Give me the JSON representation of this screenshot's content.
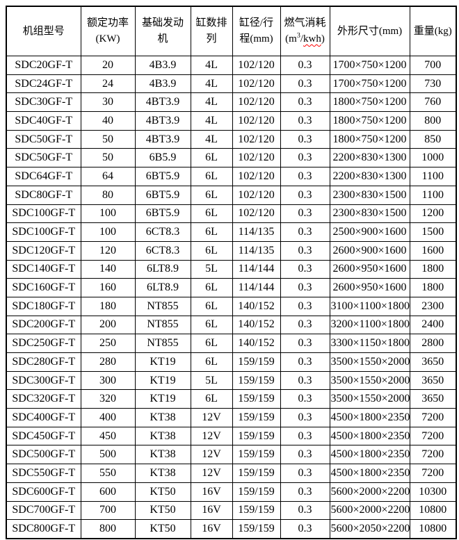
{
  "colors": {
    "border": "#000000",
    "text": "#000000",
    "background": "#ffffff",
    "spellcheck_underline": "#ff0000"
  },
  "table": {
    "columns": [
      {
        "line1": "机组型号"
      },
      {
        "line1": "额定功率",
        "line2": "(KW)"
      },
      {
        "line1": "基础发动",
        "line2": "机"
      },
      {
        "line1": "缸数排",
        "line2": "列"
      },
      {
        "line1": "缸径/行",
        "line2": "程(mm)"
      },
      {
        "line1": "燃气消耗",
        "unit_pre": "(m",
        "unit_sup": "3",
        "unit_slash": "/",
        "unit_kwh": "kwh",
        "unit_post": ")"
      },
      {
        "line1": "外形尺寸(mm)"
      },
      {
        "line1": "重量(kg)"
      }
    ],
    "rows": [
      [
        "SDC20GF-T",
        "20",
        "4B3.9",
        "4L",
        "102/120",
        "0.3",
        "1700×750×1200",
        "700"
      ],
      [
        "SDC24GF-T",
        "24",
        "4B3.9",
        "4L",
        "102/120",
        "0.3",
        "1700×750×1200",
        "730"
      ],
      [
        "SDC30GF-T",
        "30",
        "4BT3.9",
        "4L",
        "102/120",
        "0.3",
        "1800×750×1200",
        "760"
      ],
      [
        "SDC40GF-T",
        "40",
        "4BT3.9",
        "4L",
        "102/120",
        "0.3",
        "1800×750×1200",
        "800"
      ],
      [
        "SDC50GF-T",
        "50",
        "4BT3.9",
        "4L",
        "102/120",
        "0.3",
        "1800×750×1200",
        "850"
      ],
      [
        "SDC50GF-T",
        "50",
        "6B5.9",
        "6L",
        "102/120",
        "0.3",
        "2200×830×1300",
        "1000"
      ],
      [
        "SDC64GF-T",
        "64",
        "6BT5.9",
        "6L",
        "102/120",
        "0.3",
        "2200×830×1300",
        "1100"
      ],
      [
        "SDC80GF-T",
        "80",
        "6BT5.9",
        "6L",
        "102/120",
        "0.3",
        "2300×830×1500",
        "1100"
      ],
      [
        "SDC100GF-T",
        "100",
        "6BT5.9",
        "6L",
        "102/120",
        "0.3",
        "2300×830×1500",
        "1200"
      ],
      [
        "SDC100GF-T",
        "100",
        "6CT8.3",
        "6L",
        "114/135",
        "0.3",
        "2500×900×1600",
        "1500"
      ],
      [
        "SDC120GF-T",
        "120",
        "6CT8.3",
        "6L",
        "114/135",
        "0.3",
        "2600×900×1600",
        "1600"
      ],
      [
        "SDC140GF-T",
        "140",
        "6LT8.9",
        "5L",
        "114/144",
        "0.3",
        "2600×950×1600",
        "1800"
      ],
      [
        "SDC160GF-T",
        "160",
        "6LT8.9",
        "6L",
        "114/144",
        "0.3",
        "2600×950×1600",
        "1800"
      ],
      [
        "SDC180GF-T",
        "180",
        "NT855",
        "6L",
        "140/152",
        "0.3",
        "3100×1100×1800",
        "2300"
      ],
      [
        "SDC200GF-T",
        "200",
        "NT855",
        "6L",
        "140/152",
        "0.3",
        "3200×1100×1800",
        "2400"
      ],
      [
        "SDC250GF-T",
        "250",
        "NT855",
        "6L",
        "140/152",
        "0.3",
        "3300×1150×1800",
        "2800"
      ],
      [
        "SDC280GF-T",
        "280",
        "KT19",
        "6L",
        "159/159",
        "0.3",
        "3500×1550×2000",
        "3650"
      ],
      [
        "SDC300GF-T",
        "300",
        "KT19",
        "5L",
        "159/159",
        "0.3",
        "3500×1550×2000",
        "3650"
      ],
      [
        "SDC320GF-T",
        "320",
        "KT19",
        "6L",
        "159/159",
        "0.3",
        "3500×1550×2000",
        "3650"
      ],
      [
        "SDC400GF-T",
        "400",
        "KT38",
        "12V",
        "159/159",
        "0.3",
        "4500×1800×2350",
        "7200"
      ],
      [
        "SDC450GF-T",
        "450",
        "KT38",
        "12V",
        "159/159",
        "0.3",
        "4500×1800×2350",
        "7200"
      ],
      [
        "SDC500GF-T",
        "500",
        "KT38",
        "12V",
        "159/159",
        "0.3",
        "4500×1800×2350",
        "7200"
      ],
      [
        "SDC550GF-T",
        "550",
        "KT38",
        "12V",
        "159/159",
        "0.3",
        "4500×1800×2350",
        "7200"
      ],
      [
        "SDC600GF-T",
        "600",
        "KT50",
        "16V",
        "159/159",
        "0.3",
        "5600×2000×2200",
        "10300"
      ],
      [
        "SDC700GF-T",
        "700",
        "KT50",
        "16V",
        "159/159",
        "0.3",
        "5600×2000×2200",
        "10800"
      ],
      [
        "SDC800GF-T",
        "800",
        "KT50",
        "16V",
        "159/159",
        "0.3",
        "5600×2050×2200",
        "10800"
      ]
    ]
  }
}
